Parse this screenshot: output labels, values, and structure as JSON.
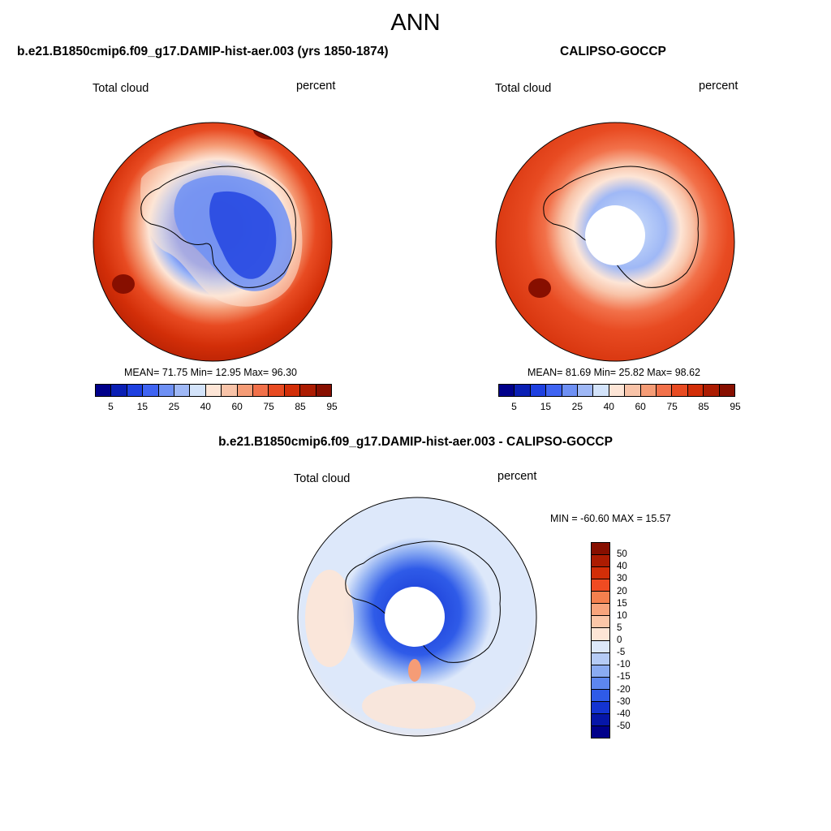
{
  "figure": {
    "title": "ANN"
  },
  "panels": [
    {
      "title": "b.e21.B1850cmip6.f09_g17.DAMIP-hist-aer.003 (yrs 1850-1874)",
      "field_label": "Total cloud",
      "units_label": "percent",
      "stats_text": "MEAN=  71.75  Min=  12.95  Max=  96.30",
      "stats": {
        "mean": 71.75,
        "min": 12.95,
        "max": 96.3
      }
    },
    {
      "title": "CALIPSO-GOCCP",
      "field_label": "Total cloud",
      "units_label": "percent",
      "stats_text": "MEAN=  81.69  Min=  25.82  Max=  98.62",
      "stats": {
        "mean": 81.69,
        "min": 25.82,
        "max": 98.62
      }
    },
    {
      "title": "b.e21.B1850cmip6.f09_g17.DAMIP-hist-aer.003 - CALIPSO-GOCCP",
      "field_label": "Total cloud",
      "units_label": "percent",
      "stats_text": "MIN = -60.60 MAX =  15.57",
      "stats": {
        "min": -60.6,
        "max": 15.57
      }
    }
  ],
  "colorbar_abs": {
    "colors": [
      "#00008a",
      "#0a1fb4",
      "#1e40e0",
      "#3f64f2",
      "#6e90f4",
      "#9fb8f6",
      "#d3e3fa",
      "#fde5d6",
      "#f8c3a8",
      "#f59c76",
      "#f2714a",
      "#e84b22",
      "#d22e08",
      "#ac1c02",
      "#870f00"
    ],
    "labels": [
      "5",
      "15",
      "25",
      "40",
      "60",
      "75",
      "85",
      "95"
    ]
  },
  "colorbar_diff": {
    "colors": [
      "#870f00",
      "#ac1c02",
      "#d22e08",
      "#f04b22",
      "#f5804e",
      "#f8a47c",
      "#fbc6a8",
      "#fde5d6",
      "#dde8fa",
      "#b5cbf6",
      "#8aabf2",
      "#5d86ef",
      "#2f5be8",
      "#1434d2",
      "#0616a8",
      "#00008a"
    ],
    "labels": [
      "50",
      "40",
      "30",
      "20",
      "15",
      "10",
      "5",
      "0",
      "-5",
      "-10",
      "-15",
      "-20",
      "-30",
      "-40",
      "-50"
    ]
  }
}
